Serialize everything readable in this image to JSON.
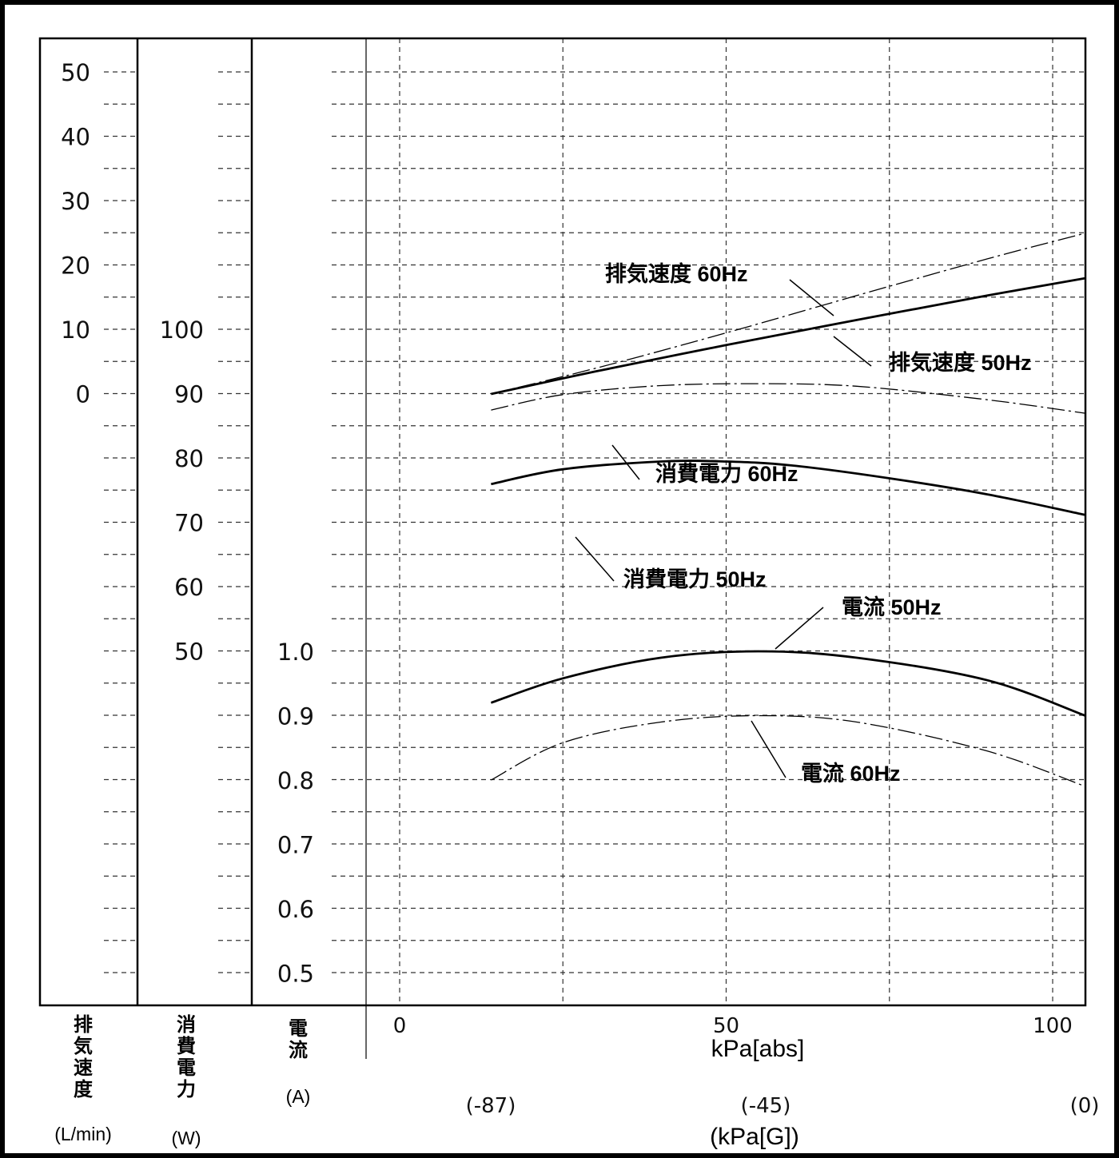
{
  "chart_data": {
    "type": "line",
    "xlabel": "kPa[abs]",
    "xlabel_gauge": "(kPa[G])",
    "x_ticks": [
      "0",
      "50",
      "100"
    ],
    "x_ticks_gauge": [
      "(-87)",
      "(-45)",
      "(0)"
    ],
    "xlim": [
      0,
      105
    ],
    "axes": {
      "exhaust": {
        "label_chars": [
          "排",
          "気",
          "速",
          "度"
        ],
        "unit": "(L/min)",
        "ticks": [
          "50",
          "40",
          "30",
          "20",
          "10",
          "0"
        ],
        "range": [
          0,
          50
        ]
      },
      "power": {
        "label_chars": [
          "消",
          "費",
          "電",
          "力"
        ],
        "unit": "(W)",
        "ticks": [
          "100",
          "90",
          "80",
          "70",
          "60",
          "50"
        ],
        "range": [
          50,
          100
        ]
      },
      "current": {
        "label_chars": [
          "電",
          "流"
        ],
        "unit": "(A)",
        "ticks": [
          "1.0",
          "0.9",
          "0.8",
          "0.7",
          "0.6",
          "0.5"
        ],
        "range": [
          0.5,
          1.0
        ]
      }
    },
    "series": [
      {
        "name": "排気速度 60Hz",
        "axis": "exhaust",
        "style": "dashdot",
        "x": [
          14,
          30,
          50,
          70,
          90,
          105
        ],
        "y": [
          0,
          4.0,
          9.5,
          15.3,
          21.0,
          25.0
        ]
      },
      {
        "name": "排気速度 50Hz",
        "axis": "exhaust",
        "style": "solid",
        "x": [
          14,
          30,
          50,
          70,
          90,
          105
        ],
        "y": [
          0,
          3.5,
          7.6,
          11.5,
          15.3,
          18.0
        ]
      },
      {
        "name": "消費電力 60Hz",
        "axis": "power",
        "style": "dashdot",
        "x": [
          14,
          25,
          40,
          55,
          70,
          90,
          105
        ],
        "y": [
          87.5,
          89.9,
          91.3,
          91.6,
          91.2,
          89.1,
          87.0
        ]
      },
      {
        "name": "消費電力 50Hz",
        "axis": "power",
        "style": "solid",
        "x": [
          14,
          25,
          40,
          50,
          60,
          75,
          90,
          105
        ],
        "y": [
          76.0,
          78.3,
          79.5,
          79.5,
          78.9,
          76.9,
          74.4,
          71.2
        ]
      },
      {
        "name": "電流 50Hz",
        "axis": "current",
        "style": "solid",
        "x": [
          14,
          25,
          40,
          55,
          70,
          90,
          105
        ],
        "y": [
          0.92,
          0.958,
          0.99,
          1.0,
          0.99,
          0.955,
          0.9
        ]
      },
      {
        "name": "電流 60Hz",
        "axis": "current",
        "style": "dashdot",
        "x": [
          14,
          25,
          40,
          55,
          70,
          90,
          105
        ],
        "y": [
          0.8,
          0.858,
          0.89,
          0.9,
          0.89,
          0.845,
          0.79
        ]
      }
    ]
  }
}
